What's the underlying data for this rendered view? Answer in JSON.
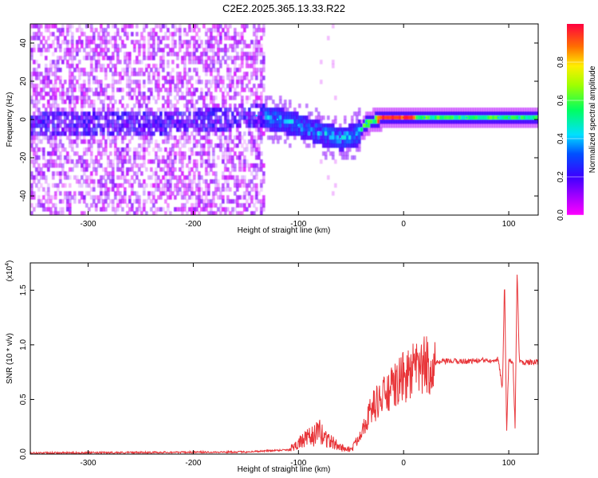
{
  "figure_title": "C2E2.2025.365.13.33.R22",
  "chart_data": [
    {
      "type": "heatmap",
      "title": "C2E2.2025.365.13.33.R22",
      "xlabel": "Height of straight line (km)",
      "ylabel": "Frequency (Hz)",
      "xlim": [
        -355,
        128
      ],
      "ylim": [
        -50,
        50
      ],
      "x_ticks": [
        -300,
        -200,
        -100,
        0,
        100
      ],
      "y_ticks": [
        -40,
        -20,
        0,
        20,
        40
      ],
      "grid": false,
      "colorbar": {
        "label": "Normalized spectral amplitude",
        "range": [
          0.0,
          1.0
        ],
        "ticks": [
          0.0,
          0.2,
          0.4,
          0.6,
          0.8
        ],
        "colormap": "rainbow (magenta-purple-blue-cyan-green-yellow-red)"
      },
      "regions": [
        {
          "x_range": [
            -355,
            -132
          ],
          "description_value": "broadband noise, amplitude ~0.0-0.15 across all frequencies"
        },
        {
          "x_range": [
            -132,
            -40
          ],
          "description_value": "signal band near 0 to -10 Hz, amplitude ~0.2-0.5"
        },
        {
          "x_range": [
            -40,
            128
          ],
          "description_value": "narrow line near 0 Hz, peak amplitude ~0.9-1.0 between -25 and 10 km"
        }
      ],
      "ridge_frequency": {
        "x": [
          -355,
          -200,
          -140,
          -120,
          -100,
          -80,
          -60,
          -45,
          -35,
          -20,
          -10,
          0,
          20,
          60,
          90,
          100,
          110,
          128
        ],
        "y": [
          -3,
          -1,
          2,
          0,
          -3,
          -7,
          -10,
          -8,
          -2,
          1,
          1,
          1,
          1,
          1,
          1,
          1,
          1,
          1
        ]
      }
    },
    {
      "type": "line",
      "title": "",
      "xlabel": "Height of straight line (km)",
      "ylabel": "SNR (10 * v/v)",
      "y_multiplier": "(x10^4)",
      "y_multiplier_base": "(x10",
      "y_multiplier_exp": "4",
      "xlim": [
        -355,
        128
      ],
      "ylim": [
        0.0,
        1.75
      ],
      "x_ticks": [
        -300,
        -200,
        -100,
        0,
        100
      ],
      "y_ticks": [
        0.0,
        0.5,
        1.0,
        1.5
      ],
      "y_tick_labels": [
        "0.0",
        "0.5",
        "1.0",
        "1.5"
      ],
      "grid": false,
      "series": [
        {
          "color": "#e8363a",
          "x": [
            -355,
            -250,
            -150,
            -110,
            -100,
            -90,
            -80,
            -70,
            -60,
            -50,
            -45,
            -40,
            -35,
            -30,
            -25,
            -20,
            -15,
            -10,
            -5,
            0,
            10,
            20,
            30,
            40,
            60,
            80,
            90,
            94,
            96,
            98,
            100,
            104,
            106,
            108,
            110,
            115,
            128
          ],
          "y": [
            0.01,
            0.015,
            0.02,
            0.04,
            0.1,
            0.15,
            0.2,
            0.12,
            0.06,
            0.04,
            0.1,
            0.22,
            0.32,
            0.42,
            0.48,
            0.52,
            0.56,
            0.6,
            0.66,
            0.7,
            0.76,
            0.8,
            0.83,
            0.85,
            0.85,
            0.86,
            0.87,
            0.6,
            1.6,
            0.2,
            0.85,
            0.85,
            0.25,
            1.7,
            0.85,
            0.84,
            0.84
          ]
        }
      ]
    }
  ]
}
